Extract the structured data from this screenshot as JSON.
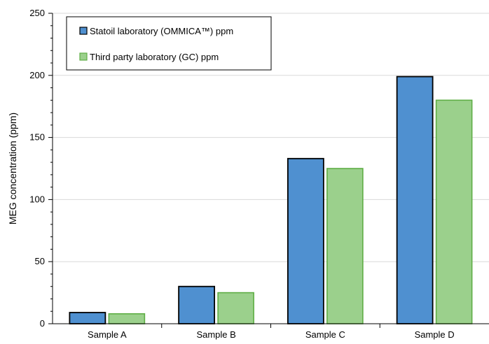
{
  "chart_data": {
    "type": "bar",
    "title": "",
    "xlabel": "",
    "ylabel": "MEG concentration (ppm)",
    "ylim": [
      0,
      250
    ],
    "yticks": [
      0,
      50,
      100,
      150,
      200,
      250
    ],
    "grid": true,
    "legend_position": "top-left",
    "categories": [
      "Sample A",
      "Sample B",
      "Sample C",
      "Sample D"
    ],
    "series": [
      {
        "name": "Statoil laboratory (OMMICA™) ppm",
        "color": "#4f90d0",
        "stroke": "#000000",
        "values": [
          9,
          30,
          133,
          199
        ]
      },
      {
        "name": "Third party laboratory (GC) ppm",
        "color": "#9bd08c",
        "stroke": "#5fae45",
        "values": [
          8,
          25,
          125,
          180
        ]
      }
    ]
  }
}
